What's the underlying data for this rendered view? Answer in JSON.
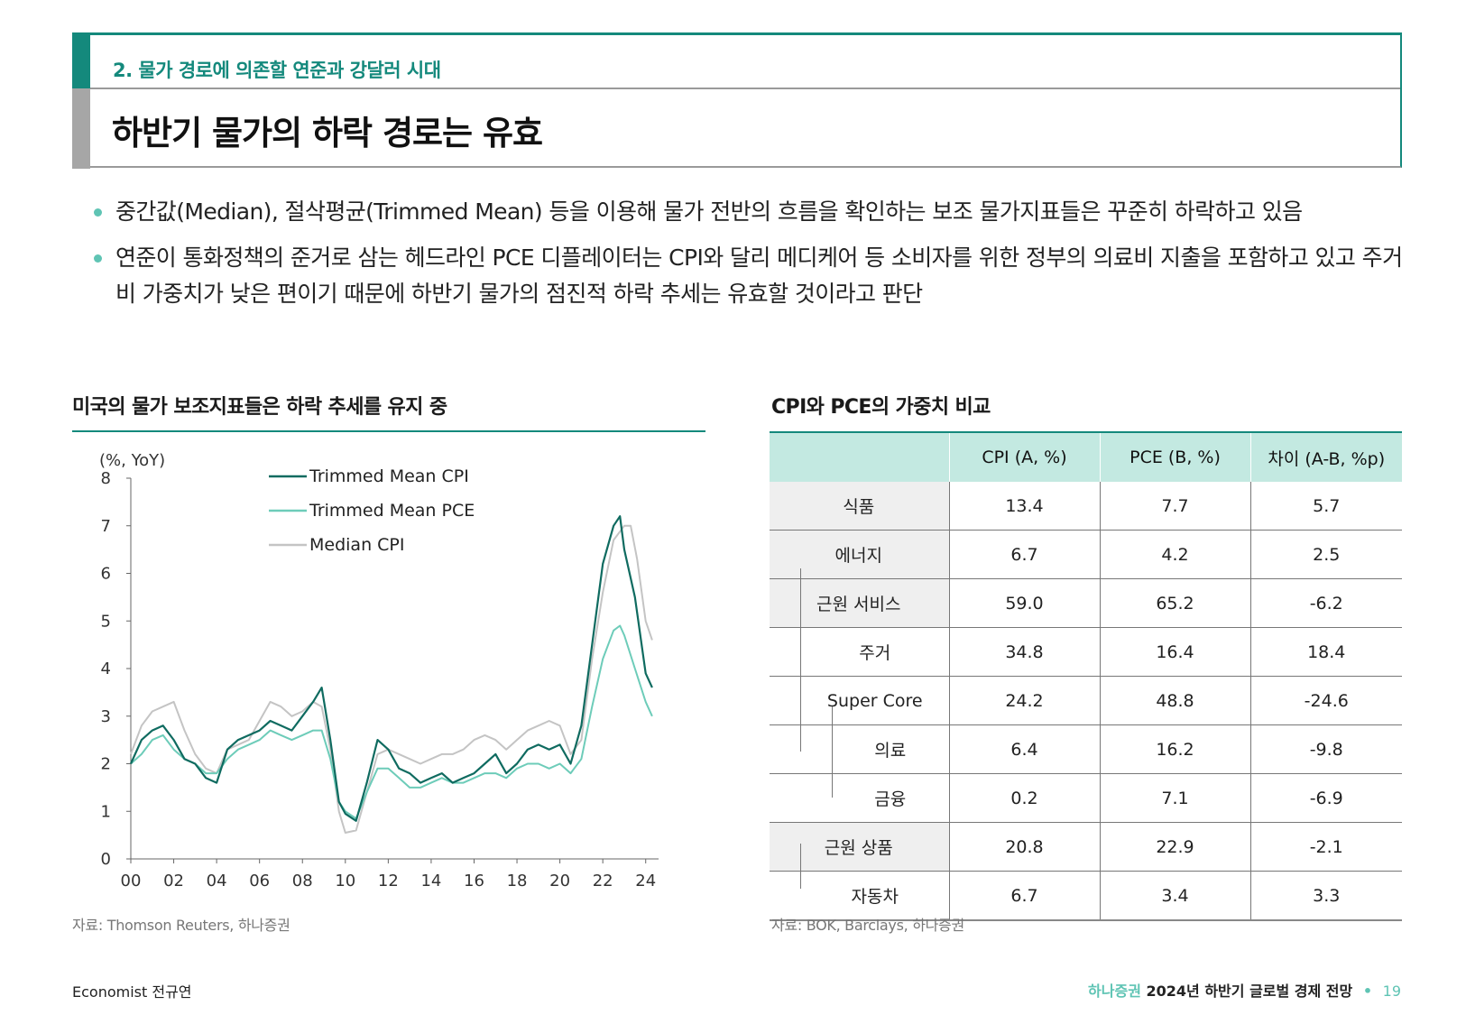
{
  "header": {
    "subtitle": "2. 물가 경로에 의존할 연준과 강달러 시대",
    "title": "하반기 물가의 하락 경로는 유효"
  },
  "bullets": [
    "중간값(Median), 절삭평균(Trimmed Mean) 등을 이용해 물가 전반의 흐름을 확인하는 보조 물가지표들은 꾸준히 하락하고 있음",
    "연준이 통화정책의 준거로 삼는 헤드라인 PCE 디플레이터는 CPI와 달리 메디케어 등 소비자를 위한 정부의 의료비 지출을 포함하고 있고 주거비 가중치가 낮은 편이기 때문에 하반기 물가의 점진적 하락 추세는 유효할 것이라고 판단"
  ],
  "left_panel": {
    "title": "미국의 물가 보조지표들은 하락 추세를 유지 중",
    "source": "자료: Thomson Reuters, 하나증권"
  },
  "right_panel": {
    "title": "CPI와 PCE의 가중치 비교",
    "source": "자료: BOK, Barclays, 하나증권",
    "columns": [
      "",
      "CPI (A, %)",
      "PCE (B, %)",
      "차이 (A-B, %p)"
    ],
    "rows": [
      {
        "label": "식품",
        "level": 0,
        "cpi": "13.4",
        "pce": "7.7",
        "diff": "5.7"
      },
      {
        "label": "에너지",
        "level": 0,
        "cpi": "6.7",
        "pce": "4.2",
        "diff": "2.5"
      },
      {
        "label": "근원 서비스",
        "level": 0,
        "cpi": "59.0",
        "pce": "65.2",
        "diff": "-6.2"
      },
      {
        "label": "주거",
        "level": 1,
        "cpi": "34.8",
        "pce": "16.4",
        "diff": "18.4"
      },
      {
        "label": "Super Core",
        "level": 1,
        "cpi": "24.2",
        "pce": "48.8",
        "diff": "-24.6"
      },
      {
        "label": "의료",
        "level": 2,
        "cpi": "6.4",
        "pce": "16.2",
        "diff": "-9.8"
      },
      {
        "label": "금융",
        "level": 2,
        "cpi": "0.2",
        "pce": "7.1",
        "diff": "-6.9"
      },
      {
        "label": "근원 상품",
        "level": 0,
        "cpi": "20.8",
        "pce": "22.9",
        "diff": "-2.1"
      },
      {
        "label": "자동차",
        "level": 1,
        "cpi": "6.7",
        "pce": "3.4",
        "diff": "3.3"
      }
    ]
  },
  "chart_data": {
    "type": "line",
    "title": "미국의 물가 보조지표들은 하락 추세를 유지 중",
    "ylabel": "(%, YoY)",
    "xlabel": "",
    "ylim": [
      0,
      8
    ],
    "xlim": [
      2000,
      2024.6
    ],
    "yticks": [
      "0",
      "1",
      "2",
      "3",
      "4",
      "5",
      "6",
      "7",
      "8"
    ],
    "xticks": [
      "00",
      "02",
      "04",
      "06",
      "08",
      "10",
      "12",
      "14",
      "16",
      "18",
      "20",
      "22",
      "24"
    ],
    "legend_position": "top-center",
    "series": [
      {
        "name": "Trimmed Mean CPI",
        "color": "#0f6b60",
        "x": [
          2000,
          2000.5,
          2001,
          2001.5,
          2002,
          2002.5,
          2003,
          2003.5,
          2004,
          2004.5,
          2005,
          2005.5,
          2006,
          2006.5,
          2007,
          2007.5,
          2008,
          2008.5,
          2008.9,
          2009.3,
          2009.7,
          2010,
          2010.5,
          2011,
          2011.5,
          2012,
          2012.5,
          2013,
          2013.5,
          2014,
          2014.5,
          2015,
          2015.5,
          2016,
          2016.5,
          2017,
          2017.5,
          2018,
          2018.5,
          2019,
          2019.5,
          2020,
          2020.5,
          2021,
          2021.5,
          2022,
          2022.5,
          2022.8,
          2023,
          2023.5,
          2024,
          2024.3
        ],
        "values": [
          2.0,
          2.5,
          2.7,
          2.8,
          2.5,
          2.1,
          2.0,
          1.7,
          1.6,
          2.3,
          2.5,
          2.6,
          2.7,
          2.9,
          2.8,
          2.7,
          3.0,
          3.3,
          3.6,
          2.5,
          1.2,
          0.95,
          0.8,
          1.6,
          2.5,
          2.3,
          1.9,
          1.8,
          1.6,
          1.7,
          1.8,
          1.6,
          1.7,
          1.8,
          2.0,
          2.2,
          1.8,
          2.0,
          2.3,
          2.4,
          2.3,
          2.4,
          2.0,
          2.8,
          4.5,
          6.2,
          7.0,
          7.2,
          6.5,
          5.5,
          3.9,
          3.6
        ]
      },
      {
        "name": "Trimmed Mean PCE",
        "color": "#6dccb9",
        "x": [
          2000,
          2000.5,
          2001,
          2001.5,
          2002,
          2002.5,
          2003,
          2003.5,
          2004,
          2004.5,
          2005,
          2005.5,
          2006,
          2006.5,
          2007,
          2007.5,
          2008,
          2008.5,
          2008.9,
          2009.3,
          2009.7,
          2010,
          2010.5,
          2011,
          2011.5,
          2012,
          2012.5,
          2013,
          2013.5,
          2014,
          2014.5,
          2015,
          2015.5,
          2016,
          2016.5,
          2017,
          2017.5,
          2018,
          2018.5,
          2019,
          2019.5,
          2020,
          2020.5,
          2021,
          2021.5,
          2022,
          2022.5,
          2022.8,
          2023,
          2023.5,
          2024,
          2024.3
        ],
        "values": [
          2.0,
          2.2,
          2.5,
          2.6,
          2.3,
          2.1,
          2.0,
          1.8,
          1.8,
          2.1,
          2.3,
          2.4,
          2.5,
          2.7,
          2.6,
          2.5,
          2.6,
          2.7,
          2.7,
          2.1,
          1.2,
          1.0,
          0.85,
          1.4,
          1.9,
          1.9,
          1.7,
          1.5,
          1.5,
          1.6,
          1.7,
          1.6,
          1.6,
          1.7,
          1.8,
          1.8,
          1.7,
          1.9,
          2.0,
          2.0,
          1.9,
          2.0,
          1.8,
          2.1,
          3.2,
          4.2,
          4.8,
          4.9,
          4.7,
          4.0,
          3.3,
          3.0
        ]
      },
      {
        "name": "Median CPI",
        "color": "#c4c4c4",
        "x": [
          2000,
          2000.5,
          2001,
          2001.5,
          2002,
          2002.5,
          2003,
          2003.5,
          2004,
          2004.5,
          2005,
          2005.5,
          2006,
          2006.5,
          2007,
          2007.5,
          2008,
          2008.5,
          2008.9,
          2009.3,
          2009.7,
          2010,
          2010.5,
          2011,
          2011.5,
          2012,
          2012.5,
          2013,
          2013.5,
          2014,
          2014.5,
          2015,
          2015.5,
          2016,
          2016.5,
          2017,
          2017.5,
          2018,
          2018.5,
          2019,
          2019.5,
          2020,
          2020.5,
          2021,
          2021.5,
          2022,
          2022.5,
          2023,
          2023.3,
          2023.6,
          2024,
          2024.3
        ],
        "values": [
          2.2,
          2.8,
          3.1,
          3.2,
          3.3,
          2.7,
          2.2,
          1.9,
          1.8,
          2.3,
          2.4,
          2.5,
          2.9,
          3.3,
          3.2,
          3.0,
          3.1,
          3.3,
          3.2,
          2.3,
          1.0,
          0.55,
          0.6,
          1.4,
          2.2,
          2.3,
          2.2,
          2.1,
          2.0,
          2.1,
          2.2,
          2.2,
          2.3,
          2.5,
          2.6,
          2.5,
          2.3,
          2.5,
          2.7,
          2.8,
          2.9,
          2.8,
          2.2,
          2.5,
          4.2,
          5.6,
          6.7,
          7.0,
          7.0,
          6.3,
          5.0,
          4.6
        ]
      }
    ]
  },
  "footer": {
    "left": "Economist 전규연",
    "brand": "하나증권",
    "report": "2024년 하반기 글로벌 경제 전망",
    "separator": "•",
    "page": "19"
  }
}
